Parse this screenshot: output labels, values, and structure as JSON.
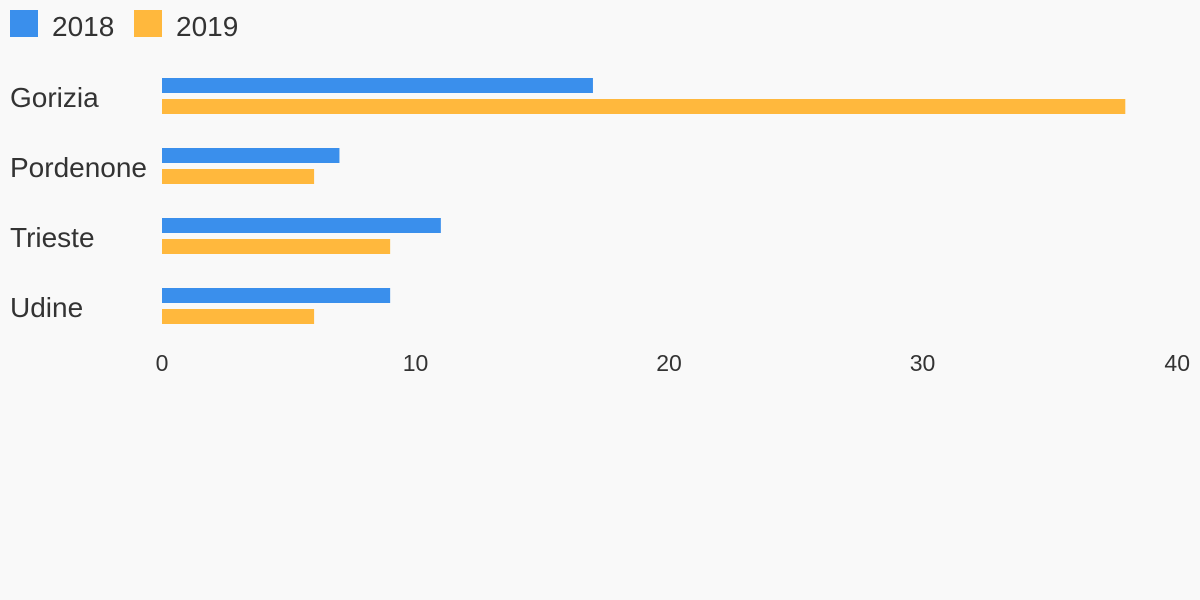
{
  "chart_data": {
    "type": "bar",
    "orientation": "horizontal",
    "title": "",
    "xlabel": "",
    "ylabel": "",
    "categories": [
      "Gorizia",
      "Pordenone",
      "Trieste",
      "Udine"
    ],
    "series": [
      {
        "name": "2018",
        "color": "#3a8fec",
        "values": [
          17,
          7,
          11,
          9
        ]
      },
      {
        "name": "2019",
        "color": "#ffb83d",
        "values": [
          38,
          6,
          9,
          6
        ]
      }
    ],
    "xlim": [
      0,
      40
    ],
    "xticks": [
      "0",
      "10",
      "20",
      "30",
      "40"
    ],
    "grid": false,
    "legend_position": "top-left"
  }
}
